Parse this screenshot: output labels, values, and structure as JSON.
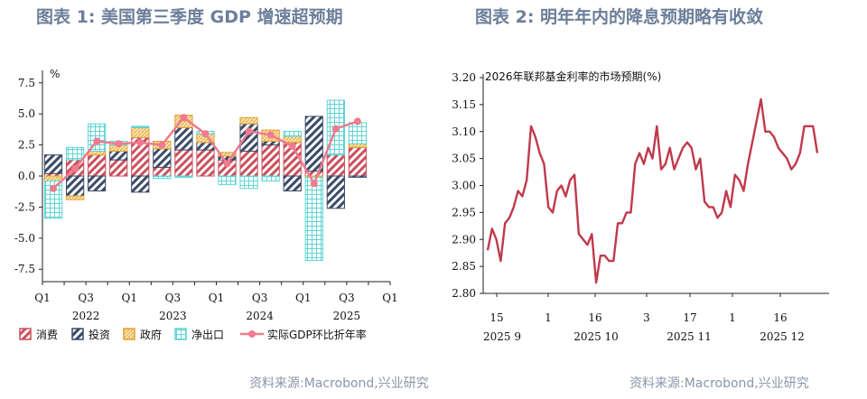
{
  "titles": {
    "left": "图表 1:  美国第三季度 GDP 增速超预期",
    "right": "图表 2:  明年年内的降息预期略有收敛"
  },
  "sources": {
    "left": "资料来源:Macrobond,兴业研究",
    "right": "资料来源:Macrobond,兴业研究"
  },
  "colors": {
    "consumption": "#c9505c",
    "investment": "#3b4a68",
    "government": "#e8b040",
    "net_exports": "#5fd4d4",
    "gdp_line": "#f07a8e",
    "rate_line": "#c0394b"
  },
  "chart_data": [
    {
      "type": "bar",
      "subtype": "stacked_bar_with_line",
      "unit_label": "%",
      "categories": [
        "2022Q1",
        "2022Q2",
        "2022Q3",
        "2022Q4",
        "2023Q1",
        "2023Q2",
        "2023Q3",
        "2023Q4",
        "2024Q1",
        "2024Q2",
        "2024Q3",
        "2024Q4",
        "2025Q1",
        "2025Q2",
        "2025Q3"
      ],
      "x_tick_labels": [
        "Q1",
        "Q3",
        "Q1",
        "Q3",
        "Q1",
        "Q3",
        "Q1",
        "Q3",
        "Q1"
      ],
      "x_year_labels": [
        "2022",
        "2023",
        "2024",
        "2025"
      ],
      "ylim": [
        -8.5,
        8.5
      ],
      "y_ticks": [
        7.5,
        5.0,
        2.5,
        0.0,
        -2.5,
        -5.0,
        -7.5
      ],
      "y_tick_labels": [
        "7.5",
        "5.0",
        "2.5",
        "0.0",
        "-2.5",
        "-5.0",
        "-7.5"
      ],
      "series": [
        {
          "name": "消费",
          "key": "consumption",
          "values": [
            0.2,
            1.3,
            1.7,
            1.3,
            3.1,
            0.7,
            2.1,
            2.1,
            1.3,
            2.0,
            2.5,
            2.7,
            0.4,
            1.7,
            2.3
          ]
        },
        {
          "name": "投资",
          "key": "investment",
          "values": [
            1.5,
            -1.6,
            -1.2,
            0.7,
            -1.3,
            1.5,
            1.8,
            0.6,
            0.3,
            2.2,
            0.3,
            -1.2,
            4.4,
            -2.6,
            -0.1
          ]
        },
        {
          "name": "政府",
          "key": "government",
          "values": [
            -0.4,
            -0.3,
            0.3,
            0.5,
            0.8,
            0.6,
            1.0,
            0.7,
            0.3,
            0.5,
            0.9,
            0.5,
            -0.1,
            0.0,
            0.3
          ]
        },
        {
          "name": "净出口",
          "key": "net_exports",
          "values": [
            -3.0,
            1.0,
            2.2,
            0.3,
            0.1,
            -0.2,
            -0.1,
            0.2,
            -0.7,
            -1.0,
            -0.4,
            0.4,
            -6.7,
            4.4,
            1.7
          ]
        }
      ],
      "line": {
        "name": "实际GDP环比折年率",
        "values": [
          -1.0,
          0.6,
          2.8,
          2.6,
          2.7,
          2.5,
          4.7,
          3.4,
          1.0,
          3.6,
          3.3,
          2.4,
          -0.6,
          3.8,
          4.4
        ]
      },
      "legend": [
        "消费",
        "投资",
        "政府",
        "净出口",
        "实际GDP环比折年率"
      ],
      "legend_position": "bottom"
    },
    {
      "type": "line",
      "title": "2026年联邦基金利率的市场预期(%)",
      "ylim": [
        2.8,
        3.2
      ],
      "y_ticks": [
        3.2,
        3.15,
        3.1,
        3.05,
        3.0,
        2.95,
        2.9,
        2.85,
        2.8
      ],
      "y_tick_labels": [
        "3.20",
        "3.15",
        "3.10",
        "3.05",
        "3.00",
        "2.95",
        "2.90",
        "2.85",
        "2.80"
      ],
      "x_tick_labels": [
        "15",
        "1",
        "16",
        "3",
        "17",
        "1",
        "16"
      ],
      "x_group_labels": [
        "2025 9",
        "2025 10",
        "2025 11",
        "2025 12"
      ],
      "values": [
        2.88,
        2.92,
        2.9,
        2.86,
        2.93,
        2.94,
        2.96,
        2.99,
        2.98,
        3.01,
        3.11,
        3.09,
        3.06,
        3.04,
        2.96,
        2.95,
        2.99,
        3.0,
        2.98,
        3.01,
        3.02,
        2.91,
        2.9,
        2.89,
        2.91,
        2.82,
        2.87,
        2.87,
        2.86,
        2.86,
        2.93,
        2.93,
        2.95,
        2.95,
        3.04,
        3.06,
        3.04,
        3.07,
        3.05,
        3.11,
        3.03,
        3.04,
        3.07,
        3.03,
        3.05,
        3.07,
        3.08,
        3.07,
        3.03,
        3.05,
        2.97,
        2.96,
        2.96,
        2.94,
        2.95,
        2.99,
        2.96,
        3.02,
        3.01,
        2.99,
        3.04,
        3.08,
        3.12,
        3.16,
        3.1,
        3.1,
        3.09,
        3.07,
        3.06,
        3.05,
        3.03,
        3.04,
        3.06,
        3.11,
        3.11,
        3.11,
        3.06
      ]
    }
  ]
}
